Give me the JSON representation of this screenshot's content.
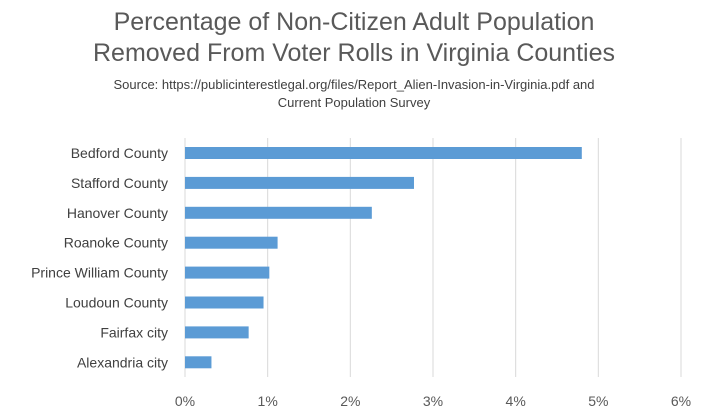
{
  "chart_data": {
    "type": "bar",
    "orientation": "horizontal",
    "title_lines": [
      "Percentage of Non-Citizen Adult Population",
      "Removed From Voter Rolls in Virginia Counties"
    ],
    "subtitle_lines": [
      "Source: https://publicinterestlegal.org/files/Report_Alien-Invasion-in-Virginia.pdf and",
      "Current Population Survey"
    ],
    "categories": [
      "Bedford County",
      "Stafford County",
      "Hanover County",
      "Roanoke County",
      "Prince William County",
      "Loudoun County",
      "Fairfax city",
      "Alexandria city"
    ],
    "values": [
      4.8,
      2.77,
      2.26,
      1.12,
      1.02,
      0.95,
      0.77,
      0.32
    ],
    "xlim": [
      0,
      6
    ],
    "xticks": [
      0,
      1,
      2,
      3,
      4,
      5,
      6
    ],
    "tick_labels": [
      "0%",
      "1%",
      "2%",
      "3%",
      "4%",
      "5%",
      "6%"
    ],
    "xlabel": "",
    "ylabel": "",
    "grid": "vertical",
    "legend": "none",
    "bar_color": "#5b9bd5",
    "grid_color": "#d9d9d9"
  }
}
